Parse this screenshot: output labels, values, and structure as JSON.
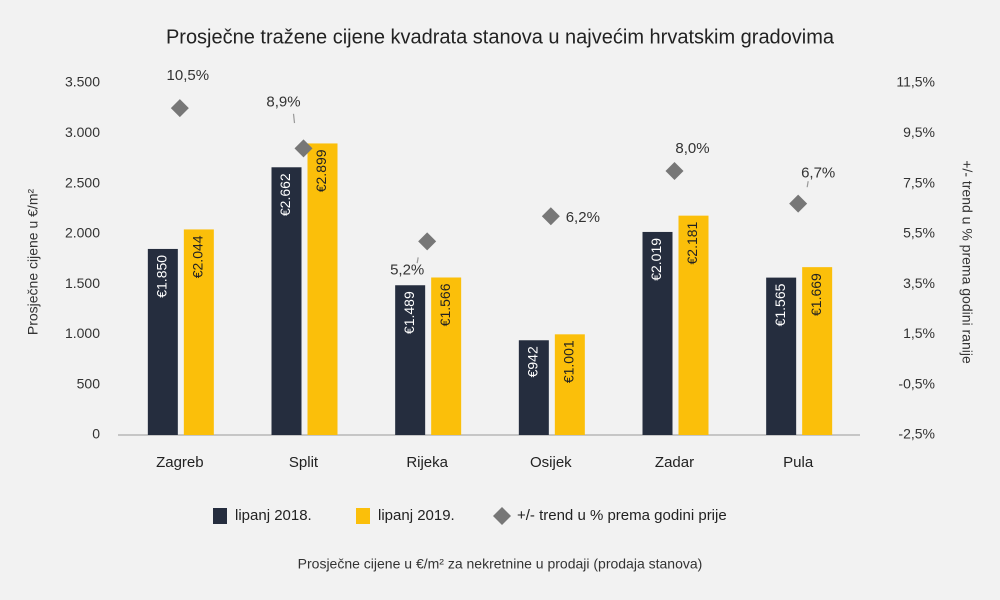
{
  "chart_data": {
    "type": "bar",
    "title": "Prosječne tražene cijene kvadrata stanova u najvećim hrvatskim gradovima",
    "y_axis_label": "Prosječne cijene u €/m²",
    "y2_axis_label": "+/- trend u % prema godini ranije",
    "footnote": "Prosječne cijene u €/m² za nekretnine u prodaji (prodaja stanova)",
    "categories": [
      "Zagreb",
      "Split",
      "Rijeka",
      "Osijek",
      "Zadar",
      "Pula"
    ],
    "series": [
      {
        "name": "lipanj 2018.",
        "color": "#252d3e",
        "type": "bar",
        "values": [
          1850,
          2662,
          1489,
          942,
          2019,
          1565
        ],
        "value_labels": [
          "€1.850",
          "€2.662",
          "€1.489",
          "€942",
          "€2.019",
          "€1.565"
        ]
      },
      {
        "name": "lipanj 2019.",
        "color": "#fbbf0a",
        "type": "bar",
        "values": [
          2044,
          2899,
          1566,
          1001,
          2181,
          1669
        ],
        "value_labels": [
          "€2.044",
          "€2.899",
          "€1.566",
          "€1.001",
          "€2.181",
          "€1.669"
        ]
      },
      {
        "name": "+/- trend u % prema godini prije",
        "color": "#777777",
        "type": "scatter",
        "axis": "y2",
        "values": [
          10.5,
          8.9,
          5.2,
          6.2,
          8.0,
          6.7
        ],
        "value_labels": [
          "10,5%",
          "8,9%",
          "5,2%",
          "6,2%",
          "8,0%",
          "6,7%"
        ]
      }
    ],
    "ylim": [
      0,
      3500
    ],
    "yticks": [
      0,
      500,
      {
        "value": 1000,
        "label": "1.000"
      },
      {
        "value": 1500,
        "label": "1.500"
      },
      {
        "value": 2000,
        "label": "2.000"
      },
      {
        "value": 2500,
        "label": "2.500"
      },
      {
        "value": 3000,
        "label": "3.000"
      },
      {
        "value": 3500,
        "label": "3.500"
      }
    ],
    "y2lim": [
      -2.5,
      11.5
    ],
    "y2ticks": [
      {
        "value": -2.5,
        "label": "-2,5%"
      },
      {
        "value": -0.5,
        "label": "-0,5%"
      },
      {
        "value": 1.5,
        "label": "1,5%"
      },
      {
        "value": 3.5,
        "label": "3,5%"
      },
      {
        "value": 5.5,
        "label": "5,5%"
      },
      {
        "value": 7.5,
        "label": "7,5%"
      },
      {
        "value": 9.5,
        "label": "9,5%"
      },
      {
        "value": 11.5,
        "label": "11,5%"
      }
    ],
    "grid": false,
    "legend": "bottom"
  }
}
